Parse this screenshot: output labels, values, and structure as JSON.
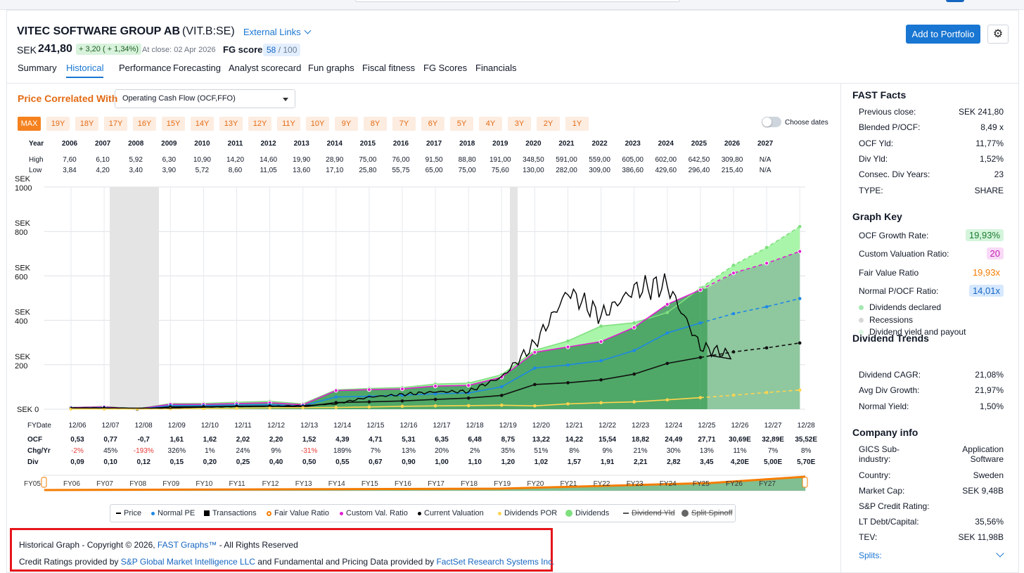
{
  "header": {
    "company": "VITEC SOFTWARE GROUP AB",
    "ticker": "(VIT.B:SE)",
    "external_links": "External Links",
    "currency": "SEK",
    "price": "241,80",
    "change": "+ 3,20 ( + 1,34%)",
    "at_close": "At close: 02 Apr 2026",
    "fg_score_label": "FG score",
    "fg_score": "58",
    "fg_score_total": " / 100",
    "add_button": "Add to Portfolio",
    "settings_icon": "gear-icon",
    "tabs": [
      "Summary",
      "Historical",
      "Performance",
      "Forecasting",
      "Analyst scorecard",
      "Fun graphs",
      "Fiscal fitness",
      "FG Scores",
      "Financials"
    ],
    "active_tab": "Historical"
  },
  "controls": {
    "price_correlated_label": "Price Correlated With",
    "metric": "Operating Cash Flow (OCF,FFO)",
    "ranges": [
      "MAX",
      "19Y",
      "18Y",
      "17Y",
      "16Y",
      "15Y",
      "14Y",
      "13Y",
      "12Y",
      "11Y",
      "10Y",
      "9Y",
      "8Y",
      "7Y",
      "6Y",
      "5Y",
      "4Y",
      "3Y",
      "2Y",
      "1Y"
    ],
    "active_range": "MAX",
    "choose_dates": "Choose dates"
  },
  "hl_table": {
    "labels": [
      "Year",
      "High",
      "Low"
    ],
    "years": [
      "2006",
      "2007",
      "2008",
      "2009",
      "2010",
      "2011",
      "2012",
      "2013",
      "2014",
      "2015",
      "2016",
      "2017",
      "2018",
      "2019",
      "2020",
      "2021",
      "2022",
      "2023",
      "2024",
      "2025",
      "2026",
      "2027"
    ],
    "high": [
      "7,60",
      "6,10",
      "5,92",
      "6,30",
      "10,90",
      "14,20",
      "14,60",
      "19,90",
      "28,90",
      "75,00",
      "76,00",
      "91,50",
      "88,80",
      "191,00",
      "348,50",
      "591,00",
      "559,00",
      "605,00",
      "602,00",
      "642,50",
      "309,80",
      "N/A"
    ],
    "low": [
      "3,84",
      "4,20",
      "3,40",
      "3,90",
      "5,72",
      "8,60",
      "11,05",
      "13,60",
      "17,10",
      "25,80",
      "55,75",
      "65,00",
      "75,00",
      "75,60",
      "130,00",
      "282,00",
      "309,00",
      "386,60",
      "429,60",
      "296,40",
      "215,40",
      "N/A"
    ]
  },
  "bottom_table": {
    "labels": [
      "FYDate",
      "OCF",
      "Chg/Yr",
      "Div"
    ],
    "dates": [
      "12/06",
      "12/07",
      "12/08",
      "12/09",
      "12/10",
      "12/11",
      "12/12",
      "12/13",
      "12/14",
      "12/15",
      "12/16",
      "12/17",
      "12/18",
      "12/19",
      "12/20",
      "12/21",
      "12/22",
      "12/23",
      "12/24",
      "12/25",
      "12/26",
      "12/27",
      "12/28"
    ],
    "ocf": [
      "0,53",
      "0,77",
      "-0,7",
      "1,61",
      "1,62",
      "2,02",
      "2,20",
      "1,52",
      "4,39",
      "4,71",
      "5,31",
      "6,35",
      "6,48",
      "8,75",
      "13,22",
      "14,22",
      "15,54",
      "18,82",
      "24,49",
      "27,71",
      "30,69E",
      "32,89E",
      "35,52E"
    ],
    "chg": [
      "-2%",
      "45%",
      "-193%",
      "326%",
      "1%",
      "24%",
      "9%",
      "-31%",
      "189%",
      "7%",
      "13%",
      "20%",
      "2%",
      "35%",
      "51%",
      "8%",
      "9%",
      "21%",
      "30%",
      "13%",
      "11%",
      "7%",
      "8%"
    ],
    "div": [
      "0,09",
      "0,10",
      "0,12",
      "0,15",
      "0,20",
      "0,25",
      "0,40",
      "0,50",
      "0,55",
      "0,67",
      "0,90",
      "1,00",
      "1,10",
      "1,20",
      "1,02",
      "1,57",
      "1,91",
      "2,21",
      "2,82",
      "3,45",
      "4,20E",
      "5,00E",
      "5,70E"
    ]
  },
  "navigator": {
    "labels": [
      "FY05",
      "FY06",
      "FY07",
      "FY08",
      "FY09",
      "FY10",
      "FY11",
      "FY12",
      "FY13",
      "FY14",
      "FY15",
      "FY16",
      "FY17",
      "FY18",
      "FY19",
      "FY20",
      "FY21",
      "FY22",
      "FY23",
      "FY24",
      "FY25",
      "FY26",
      "FY27"
    ]
  },
  "legend": [
    {
      "label": "Price",
      "marker": "dash",
      "color": "#000000",
      "struck": false
    },
    {
      "label": "Normal PE",
      "marker": "dot",
      "color": "#1e88e5",
      "struck": false
    },
    {
      "label": "Transactions",
      "marker": "square",
      "color": "#000000",
      "struck": false
    },
    {
      "label": "Fair Value Ratio",
      "marker": "ring",
      "color": "#f57c00",
      "struck": false
    },
    {
      "label": "Custom Val. Ratio",
      "marker": "dot",
      "color": "#e11fd0",
      "struck": false
    },
    {
      "label": "Current Valuation",
      "marker": "dot",
      "color": "#000000",
      "struck": false
    },
    {
      "label": "Dividends POR",
      "marker": "dot",
      "color": "#ffd54f",
      "struck": false
    },
    {
      "label": "Dividends",
      "marker": "bigdot",
      "color": "#7ee07e",
      "struck": false
    },
    {
      "label": "Dividend Yld",
      "marker": "arrowdash",
      "color": "#555555",
      "struck": true
    },
    {
      "label": "Split Spinoff",
      "marker": "bigdot",
      "color": "#666666",
      "struck": true
    }
  ],
  "copyright": {
    "prefix": "Historical Graph - Copyright © 2026, ",
    "brand": "FAST Graphs™",
    "suffix": " - All Rights Reserved",
    "credit_prefix": "Credit Ratings provided by ",
    "sp": "S&P Global Market Intelligence LLC",
    "credit_mid": " and Fundamental and Pricing Data provided by ",
    "factset": "FactSet Research Systems Inc."
  },
  "sidebar": {
    "fast_facts_title": "FAST Facts",
    "fast_facts": [
      {
        "label": "Previous close:",
        "value": "SEK 241,80"
      },
      {
        "label": "Blended P/OCF:",
        "value": "8,49 x"
      },
      {
        "label": "OCF Yld:",
        "value": "11,77%"
      },
      {
        "label": "Div Yld:",
        "value": "1,52%"
      },
      {
        "label": "Consec. Div Years:",
        "value": "23"
      },
      {
        "label": "TYPE:",
        "value": "SHARE"
      }
    ],
    "graph_key_title": "Graph Key",
    "graph_key": [
      {
        "label": "OCF Growth Rate:",
        "value": "19,93%",
        "bg": "#d4f5dc",
        "fg": "#1b7a2e"
      },
      {
        "label": "Custom Valuation Ratio:",
        "value": "20",
        "bg": "#f9d9f6",
        "fg": "#c21fb4"
      },
      {
        "label": "Fair Value Ratio",
        "value": "19,93x",
        "bg": "#ffffff",
        "fg": "#f57c00"
      },
      {
        "label": "Normal P/OCF Ratio:",
        "value": "14,01x",
        "bg": "#d6e8ff",
        "fg": "#1565c0"
      }
    ],
    "key_dots": [
      {
        "label": "Dividends declared",
        "color": "#a6e8b4"
      },
      {
        "label": "Recessions",
        "color": "#d6d6d6"
      },
      {
        "label": "Dividend yield and payout",
        "color": "#dbf5e1"
      }
    ],
    "dividend_trends_title": "Dividend Trends",
    "dividend_trends": [
      {
        "label": "Dividend CAGR:",
        "value": "21,08%"
      },
      {
        "label": "Avg Div Growth:",
        "value": "21,97%"
      },
      {
        "label": "Normal Yield:",
        "value": "1,50%"
      }
    ],
    "company_info_title": "Company info",
    "gics_label": "GICS Sub-industry:",
    "gics_value": "Application Software",
    "company_info": [
      {
        "label": "Country:",
        "value": "Sweden"
      },
      {
        "label": "Market Cap:",
        "value": "SEK 9,48B"
      },
      {
        "label": "S&P Credit Rating:",
        "value": ""
      },
      {
        "label": "LT Debt/Capital:",
        "value": "35,56%"
      },
      {
        "label": "TEV:",
        "value": "SEK 11,98B"
      }
    ],
    "splits": "Splits:"
  },
  "chart_data": {
    "type": "line",
    "y_axis": {
      "currency": "SEK",
      "ticks": [
        0,
        200,
        400,
        600,
        800,
        1000
      ],
      "ylim": [
        0,
        1000
      ]
    },
    "x": [
      "12/06",
      "12/07",
      "12/08",
      "12/09",
      "12/10",
      "12/11",
      "12/12",
      "12/13",
      "12/14",
      "12/15",
      "12/16",
      "12/17",
      "12/18",
      "12/19",
      "12/20",
      "12/21",
      "12/22",
      "12/23",
      "12/24",
      "12/25",
      "12/26",
      "12/27",
      "12/28"
    ],
    "recessions": [
      [
        "2007-12",
        "2009-06"
      ],
      [
        "2020-02",
        "2020-04"
      ]
    ],
    "series": [
      {
        "name": "Dividends (OCF+div)",
        "color": "#9ef29e",
        "values": [
          8,
          12,
          2,
          25,
          26,
          31,
          35,
          24,
          87,
          93,
          97,
          113,
          117,
          155,
          265,
          307,
          374,
          389,
          435,
          545,
          648,
          728,
          822
        ]
      },
      {
        "name": "Custom Val. Ratio",
        "color": "#e11fd0",
        "values": [
          7,
          10,
          1,
          22,
          22,
          25,
          29,
          20,
          84,
          88,
          91,
          104,
          107,
          144,
          256,
          280,
          304,
          368,
          472,
          537,
          613,
          657,
          710
        ]
      },
      {
        "name": "Normal PE",
        "color": "#1e88e5",
        "values": [
          5,
          7,
          0,
          16,
          16,
          19,
          20,
          15,
          55,
          58,
          63,
          69,
          73,
          101,
          185,
          199,
          218,
          264,
          343,
          388,
          430,
          461,
          498
        ]
      },
      {
        "name": "Current Valuation (OCF)",
        "color": "#000000",
        "values": [
          3,
          5,
          0,
          10,
          11,
          13,
          14,
          10,
          30,
          33,
          37,
          44,
          50,
          62,
          111,
          119,
          132,
          158,
          206,
          233,
          258,
          276,
          298
        ]
      },
      {
        "name": "Dividends POR",
        "color": "#ffd54f",
        "values": [
          1,
          1,
          1,
          2,
          3,
          4,
          6,
          7,
          8,
          10,
          13,
          15,
          16,
          18,
          15,
          24,
          29,
          33,
          42,
          52,
          63,
          75,
          86
        ]
      },
      {
        "name": "Price",
        "color": "#000000",
        "x": [
          "2006",
          "2007",
          "2008",
          "2009",
          "2010",
          "2011",
          "2012",
          "2013",
          "2014",
          "2015",
          "2016",
          "2017",
          "2018",
          "2019",
          "2020",
          "2021",
          "2022",
          "2023",
          "2024",
          "2025",
          "2026"
        ],
        "values": [
          6,
          6,
          5,
          5,
          9,
          12,
          13,
          16,
          24,
          55,
          66,
          78,
          80,
          145,
          295,
          530,
          420,
          540,
          560,
          280,
          242
        ]
      }
    ]
  }
}
